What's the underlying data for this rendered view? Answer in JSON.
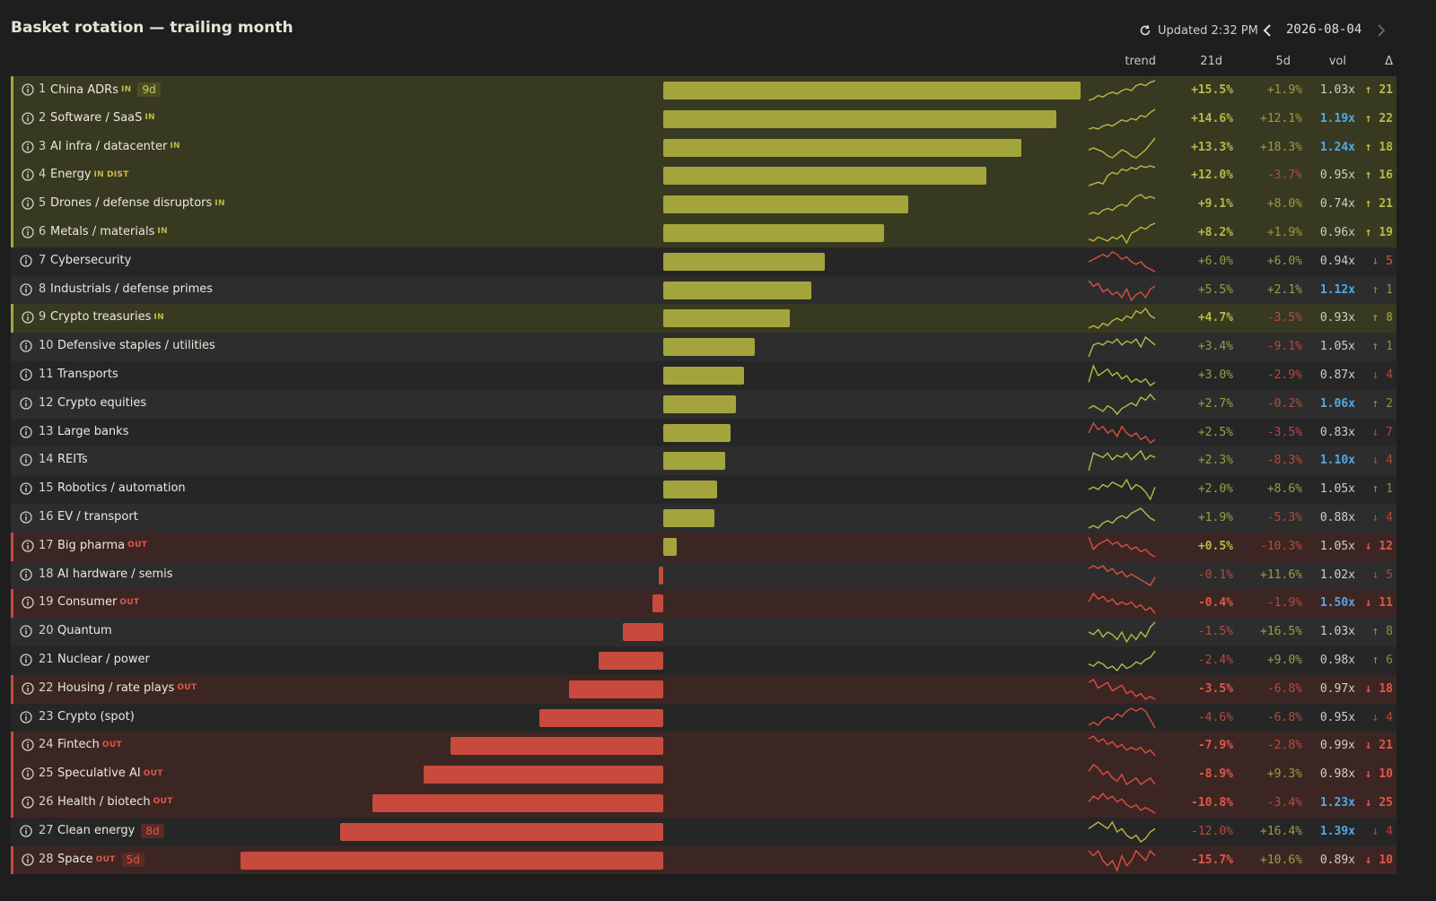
{
  "header": {
    "title": "Basket rotation — trailing month",
    "updated": "Updated 2:32 PM",
    "date": "2026-08-04"
  },
  "columns": {
    "trend": "trend",
    "d21": "21d",
    "d5": "5d",
    "vol": "vol",
    "delta": "Δ"
  },
  "colors": {
    "accent_pos": "#a3a53c",
    "accent_neg": "#c84a3c",
    "vol_high": "#52a9e6"
  },
  "rows": [
    {
      "rank": "1",
      "name": "China ADRs",
      "tags": [
        "IN"
      ],
      "pill": "9d",
      "pill_color": "g",
      "status": "in",
      "ret21_value": 15.5,
      "ret21": "+15.5%",
      "ret5": "+1.9%",
      "vol": "1.03x",
      "vol_hi": false,
      "delta": "↑ 21",
      "delta_dir": "up",
      "spark": [
        3,
        4,
        6,
        5,
        7,
        8,
        7,
        9,
        10,
        9,
        12,
        13,
        12,
        14,
        15
      ]
    },
    {
      "rank": "2",
      "name": "Software / SaaS",
      "tags": [
        "IN"
      ],
      "status": "in",
      "ret21_value": 14.6,
      "ret21": "+14.6%",
      "ret5": "+12.1%",
      "vol": "1.19x",
      "vol_hi": true,
      "delta": "↑ 22",
      "delta_dir": "up",
      "spark": [
        2,
        3,
        2,
        4,
        5,
        4,
        6,
        8,
        7,
        9,
        8,
        11,
        10,
        13,
        15
      ]
    },
    {
      "rank": "3",
      "name": "AI infra / datacenter",
      "tags": [
        "IN"
      ],
      "status": "in",
      "ret21_value": 13.3,
      "ret21": "+13.3%",
      "ret5": "+18.3%",
      "vol": "1.24x",
      "vol_hi": true,
      "delta": "↑ 18",
      "delta_dir": "up",
      "spark": [
        9,
        10,
        9,
        8,
        6,
        5,
        7,
        9,
        8,
        6,
        5,
        7,
        9,
        12,
        15
      ]
    },
    {
      "rank": "4",
      "name": "Energy",
      "tags": [
        "IN",
        "DIST"
      ],
      "status": "in",
      "ret21_value": 12.0,
      "ret21": "+12.0%",
      "ret5": "-3.7%",
      "vol": "0.95x",
      "vol_hi": false,
      "delta": "↑ 16",
      "delta_dir": "up",
      "spark": [
        2,
        3,
        4,
        3,
        8,
        10,
        9,
        12,
        11,
        13,
        12,
        14,
        13,
        14,
        13
      ]
    },
    {
      "rank": "5",
      "name": "Drones / defense disruptors",
      "tags": [
        "IN"
      ],
      "status": "in",
      "ret21_value": 9.1,
      "ret21": "+9.1%",
      "ret5": "+8.0%",
      "vol": "0.74x",
      "vol_hi": false,
      "delta": "↑ 21",
      "delta_dir": "up",
      "spark": [
        3,
        4,
        3,
        5,
        6,
        5,
        7,
        8,
        7,
        10,
        12,
        13,
        11,
        12,
        11
      ]
    },
    {
      "rank": "6",
      "name": "Metals / materials",
      "tags": [
        "IN"
      ],
      "status": "in",
      "ret21_value": 8.2,
      "ret21": "+8.2%",
      "ret5": "+1.9%",
      "vol": "0.96x",
      "vol_hi": false,
      "delta": "↑ 19",
      "delta_dir": "up",
      "spark": [
        6,
        5,
        7,
        6,
        5,
        7,
        6,
        8,
        4,
        9,
        10,
        12,
        11,
        13,
        14
      ]
    },
    {
      "rank": "7",
      "name": "Cybersecurity",
      "tags": [],
      "status": "none",
      "ret21_value": 6.0,
      "ret21": "+6.0%",
      "ret5": "+6.0%",
      "vol": "0.94x",
      "vol_hi": false,
      "delta": "↓ 5",
      "delta_dir": "down",
      "spark": [
        9,
        10,
        11,
        12,
        11,
        13,
        12,
        10,
        11,
        9,
        8,
        9,
        7,
        6,
        5
      ]
    },
    {
      "rank": "8",
      "name": "Industrials / defense primes",
      "tags": [],
      "status": "none",
      "ret21_value": 5.5,
      "ret21": "+5.5%",
      "ret5": "+2.1%",
      "vol": "1.12x",
      "vol_hi": true,
      "delta": "↑ 1",
      "delta_dir": "dim-up",
      "spark": [
        12,
        10,
        11,
        8,
        9,
        7,
        8,
        6,
        9,
        5,
        7,
        8,
        6,
        9,
        10
      ]
    },
    {
      "rank": "9",
      "name": "Crypto treasuries",
      "tags": [
        "IN"
      ],
      "status": "in",
      "ret21_value": 4.7,
      "ret21": "+4.7%",
      "ret5": "-3.5%",
      "vol": "0.93x",
      "vol_hi": false,
      "delta": "↑ 8",
      "delta_dir": "dim-up",
      "spark": [
        5,
        6,
        5,
        7,
        6,
        8,
        9,
        8,
        10,
        9,
        12,
        11,
        13,
        10,
        9
      ]
    },
    {
      "rank": "10",
      "name": "Defensive staples / utilities",
      "tags": [],
      "status": "none",
      "ret21_value": 3.4,
      "ret21": "+3.4%",
      "ret5": "-9.1%",
      "vol": "1.05x",
      "vol_hi": false,
      "delta": "↑ 1",
      "delta_dir": "dim-up",
      "spark": [
        4,
        10,
        11,
        10,
        12,
        11,
        13,
        10,
        12,
        11,
        13,
        9,
        14,
        12,
        10
      ]
    },
    {
      "rank": "11",
      "name": "Transports",
      "tags": [],
      "status": "none",
      "ret21_value": 3.0,
      "ret21": "+3.0%",
      "ret5": "-2.9%",
      "vol": "0.87x",
      "vol_hi": false,
      "delta": "↓ 4",
      "delta_dir": "dim-down",
      "spark": [
        7,
        12,
        9,
        10,
        11,
        9,
        10,
        8,
        9,
        7,
        8,
        7,
        8,
        6,
        7
      ]
    },
    {
      "rank": "12",
      "name": "Crypto equities",
      "tags": [],
      "status": "none",
      "ret21_value": 2.7,
      "ret21": "+2.7%",
      "ret5": "-0.2%",
      "vol": "1.06x",
      "vol_hi": true,
      "delta": "↑ 2",
      "delta_dir": "dim-up",
      "spark": [
        6,
        7,
        6,
        5,
        7,
        6,
        4,
        6,
        7,
        8,
        7,
        10,
        9,
        11,
        9
      ]
    },
    {
      "rank": "13",
      "name": "Large banks",
      "tags": [],
      "status": "none",
      "ret21_value": 2.5,
      "ret21": "+2.5%",
      "ret5": "-3.5%",
      "vol": "0.83x",
      "vol_hi": false,
      "delta": "↓ 7",
      "delta_dir": "dim-down",
      "spark": [
        9,
        12,
        10,
        11,
        9,
        10,
        8,
        11,
        9,
        8,
        9,
        7,
        8,
        6,
        7
      ]
    },
    {
      "rank": "14",
      "name": "REITs",
      "tags": [],
      "status": "none",
      "ret21_value": 2.3,
      "ret21": "+2.3%",
      "ret5": "-8.3%",
      "vol": "1.10x",
      "vol_hi": true,
      "delta": "↓ 4",
      "delta_dir": "dim-down",
      "spark": [
        4,
        12,
        11,
        10,
        12,
        9,
        11,
        10,
        12,
        9,
        11,
        13,
        9,
        11,
        10
      ]
    },
    {
      "rank": "15",
      "name": "Robotics / automation",
      "tags": [],
      "status": "none",
      "ret21_value": 2.0,
      "ret21": "+2.0%",
      "ret5": "+8.6%",
      "vol": "1.05x",
      "vol_hi": false,
      "delta": "↑ 1",
      "delta_dir": "dim-up",
      "spark": [
        8,
        9,
        8,
        10,
        9,
        11,
        10,
        9,
        12,
        8,
        10,
        9,
        7,
        4,
        9
      ]
    },
    {
      "rank": "16",
      "name": "EV / transport",
      "tags": [],
      "status": "none",
      "ret21_value": 1.9,
      "ret21": "+1.9%",
      "ret5": "-5.3%",
      "vol": "0.88x",
      "vol_hi": false,
      "delta": "↓ 4",
      "delta_dir": "dim-down",
      "spark": [
        5,
        6,
        5,
        7,
        8,
        7,
        9,
        10,
        9,
        11,
        12,
        13,
        11,
        9,
        8
      ]
    },
    {
      "rank": "17",
      "name": "Big pharma",
      "tags": [
        "OUT"
      ],
      "status": "out",
      "ret21_value": 0.5,
      "ret21": "+0.5%",
      "ret5": "-10.3%",
      "vol": "1.05x",
      "vol_hi": false,
      "delta": "↓ 12",
      "delta_dir": "down",
      "spark": [
        12,
        7,
        9,
        10,
        11,
        9,
        10,
        8,
        9,
        7,
        8,
        6,
        7,
        5,
        4
      ]
    },
    {
      "rank": "18",
      "name": "AI hardware / semis",
      "tags": [],
      "status": "none",
      "ret21_value": -0.1,
      "ret21": "-0.1%",
      "ret5": "+11.6%",
      "vol": "1.02x",
      "vol_hi": false,
      "delta": "↓ 5",
      "delta_dir": "dim-down",
      "spark": [
        11,
        12,
        11,
        12,
        10,
        11,
        9,
        10,
        8,
        9,
        8,
        7,
        6,
        5,
        8
      ]
    },
    {
      "rank": "19",
      "name": "Consumer",
      "tags": [
        "OUT"
      ],
      "status": "out",
      "ret21_value": -0.4,
      "ret21": "-0.4%",
      "ret5": "-1.9%",
      "vol": "1.50x",
      "vol_hi": true,
      "delta": "↓ 11",
      "delta_dir": "down",
      "spark": [
        9,
        12,
        10,
        11,
        9,
        10,
        8,
        9,
        8,
        9,
        7,
        8,
        6,
        7,
        5
      ]
    },
    {
      "rank": "20",
      "name": "Quantum",
      "tags": [],
      "status": "none",
      "ret21_value": -1.5,
      "ret21": "-1.5%",
      "ret5": "+16.5%",
      "vol": "1.03x",
      "vol_hi": false,
      "delta": "↑ 8",
      "delta_dir": "dim-up",
      "spark": [
        9,
        8,
        10,
        7,
        9,
        8,
        6,
        9,
        5,
        8,
        6,
        9,
        7,
        11,
        13
      ]
    },
    {
      "rank": "21",
      "name": "Nuclear / power",
      "tags": [],
      "status": "none",
      "ret21_value": -2.4,
      "ret21": "-2.4%",
      "ret5": "+9.0%",
      "vol": "0.98x",
      "vol_hi": false,
      "delta": "↑ 6",
      "delta_dir": "dim-up",
      "spark": [
        7,
        6,
        8,
        7,
        5,
        6,
        4,
        7,
        5,
        6,
        8,
        7,
        9,
        10,
        13
      ]
    },
    {
      "rank": "22",
      "name": "Housing / rate plays",
      "tags": [
        "OUT"
      ],
      "status": "out",
      "ret21_value": -3.5,
      "ret21": "-3.5%",
      "ret5": "-6.8%",
      "vol": "0.97x",
      "vol_hi": false,
      "delta": "↓ 18",
      "delta_dir": "down",
      "spark": [
        11,
        12,
        9,
        10,
        11,
        8,
        9,
        10,
        7,
        8,
        6,
        7,
        5,
        6,
        5
      ]
    },
    {
      "rank": "23",
      "name": "Crypto (spot)",
      "tags": [],
      "status": "none",
      "ret21_value": -4.6,
      "ret21": "-4.6%",
      "ret5": "-6.8%",
      "vol": "0.95x",
      "vol_hi": false,
      "delta": "↓ 4",
      "delta_dir": "dim-down",
      "spark": [
        6,
        7,
        6,
        8,
        9,
        8,
        10,
        9,
        11,
        12,
        11,
        12,
        11,
        8,
        5
      ]
    },
    {
      "rank": "24",
      "name": "Fintech",
      "tags": [
        "OUT"
      ],
      "status": "out",
      "ret21_value": -7.9,
      "ret21": "-7.9%",
      "ret5": "-2.8%",
      "vol": "0.99x",
      "vol_hi": false,
      "delta": "↓ 21",
      "delta_dir": "down",
      "spark": [
        12,
        13,
        11,
        12,
        10,
        11,
        9,
        10,
        8,
        9,
        8,
        9,
        7,
        8,
        6
      ]
    },
    {
      "rank": "25",
      "name": "Speculative AI",
      "tags": [
        "OUT"
      ],
      "status": "out",
      "ret21_value": -8.9,
      "ret21": "-8.9%",
      "ret5": "+9.3%",
      "vol": "0.98x",
      "vol_hi": false,
      "delta": "↓ 10",
      "delta_dir": "down",
      "spark": [
        11,
        13,
        12,
        10,
        11,
        9,
        8,
        10,
        7,
        8,
        9,
        7,
        8,
        9,
        7
      ]
    },
    {
      "rank": "26",
      "name": "Health / biotech",
      "tags": [
        "OUT"
      ],
      "status": "out",
      "ret21_value": -10.8,
      "ret21": "-10.8%",
      "ret5": "-3.4%",
      "vol": "1.23x",
      "vol_hi": true,
      "delta": "↓ 25",
      "delta_dir": "down",
      "spark": [
        10,
        12,
        11,
        13,
        11,
        12,
        10,
        11,
        9,
        8,
        9,
        7,
        8,
        7,
        6
      ]
    },
    {
      "rank": "27",
      "name": "Clean energy",
      "tags": [],
      "pill": "8d",
      "pill_color": "r",
      "status": "none",
      "ret21_value": -12.0,
      "ret21": "-12.0%",
      "ret5": "+16.4%",
      "vol": "1.39x",
      "vol_hi": true,
      "delta": "↓ 4",
      "delta_dir": "dim-down",
      "spark": [
        9,
        10,
        11,
        10,
        9,
        11,
        8,
        9,
        7,
        6,
        7,
        5,
        6,
        8,
        9
      ]
    },
    {
      "rank": "28",
      "name": "Space",
      "tags": [
        "OUT"
      ],
      "pill": "5d",
      "pill_color": "r",
      "status": "out",
      "ret21_value": -15.7,
      "ret21": "-15.7%",
      "ret5": "+10.6%",
      "vol": "0.89x",
      "vol_hi": false,
      "delta": "↓ 10",
      "delta_dir": "down",
      "spark": [
        9,
        8,
        9,
        7,
        6,
        7,
        5,
        8,
        6,
        7,
        9,
        8,
        7,
        9,
        8
      ]
    }
  ]
}
